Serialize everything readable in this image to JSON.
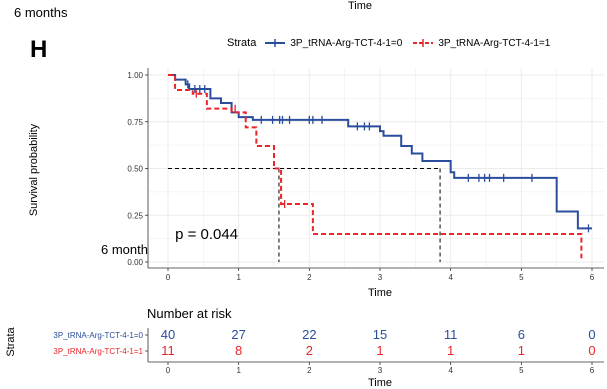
{
  "top_caption": "6 months",
  "top_axis_label": "Time",
  "panel_letter": "H",
  "legend": {
    "title": "Strata",
    "items": [
      {
        "label": "3P_tRNA-Arg-TCT-4-1=0",
        "color": "#2a4d9c"
      },
      {
        "label": "3P_tRNA-Arg-TCT-4-1=1",
        "color": "#e8262a"
      }
    ]
  },
  "chart_data": {
    "type": "line",
    "xlabel": "Time",
    "ylabel": "Survival probability",
    "xlim": [
      0,
      6
    ],
    "ylim": [
      0,
      1
    ],
    "xticks": [
      "0",
      "1",
      "2",
      "3",
      "4",
      "5",
      "6"
    ],
    "yticks": [
      "0.00",
      "0.25",
      "0.50",
      "0.75",
      "1.00"
    ],
    "annotation": "p = 0.044",
    "annotation_at": [
      0.1,
      0.15
    ],
    "inline_label": "6 month",
    "series": [
      {
        "color": "#2a4d9c",
        "dashed": false,
        "steps": [
          [
            0,
            1.0
          ],
          [
            0.1,
            0.975
          ],
          [
            0.25,
            0.95
          ],
          [
            0.3,
            0.925
          ],
          [
            0.6,
            0.875
          ],
          [
            0.75,
            0.85
          ],
          [
            0.9,
            0.8
          ],
          [
            1.0,
            0.775
          ],
          [
            1.2,
            0.76
          ],
          [
            2.55,
            0.725
          ],
          [
            3.0,
            0.7
          ],
          [
            3.05,
            0.675
          ],
          [
            3.3,
            0.62
          ],
          [
            3.45,
            0.58
          ],
          [
            3.6,
            0.54
          ],
          [
            3.8,
            0.54
          ],
          [
            4.0,
            0.48
          ],
          [
            4.05,
            0.45
          ],
          [
            5.5,
            0.27
          ],
          [
            5.8,
            0.18
          ],
          [
            6.0,
            0.18
          ]
        ],
        "censor": [
          [
            0.28,
            0.95
          ],
          [
            0.38,
            0.925
          ],
          [
            0.45,
            0.925
          ],
          [
            0.52,
            0.925
          ],
          [
            1.32,
            0.76
          ],
          [
            1.48,
            0.76
          ],
          [
            1.58,
            0.76
          ],
          [
            1.62,
            0.76
          ],
          [
            1.72,
            0.76
          ],
          [
            2.0,
            0.76
          ],
          [
            2.05,
            0.76
          ],
          [
            2.18,
            0.76
          ],
          [
            2.68,
            0.725
          ],
          [
            2.78,
            0.725
          ],
          [
            2.85,
            0.725
          ],
          [
            4.25,
            0.45
          ],
          [
            4.4,
            0.45
          ],
          [
            4.48,
            0.45
          ],
          [
            4.55,
            0.45
          ],
          [
            4.75,
            0.45
          ],
          [
            5.15,
            0.45
          ],
          [
            5.95,
            0.18
          ]
        ]
      },
      {
        "color": "#e8262a",
        "dashed": true,
        "steps": [
          [
            0,
            1.0
          ],
          [
            0.1,
            0.92
          ],
          [
            0.35,
            0.9
          ],
          [
            0.55,
            0.82
          ],
          [
            0.9,
            0.8
          ],
          [
            1.1,
            0.72
          ],
          [
            1.25,
            0.62
          ],
          [
            1.5,
            0.5
          ],
          [
            1.6,
            0.31
          ],
          [
            2.05,
            0.15
          ],
          [
            5.85,
            0.02
          ]
        ],
        "censor": [
          [
            0.4,
            0.9
          ],
          [
            0.95,
            0.82
          ],
          [
            1.65,
            0.31
          ]
        ]
      }
    ],
    "median_lines": [
      {
        "x": 1.57,
        "y": 0.5
      },
      {
        "x": 3.85,
        "y": 0.5
      }
    ]
  },
  "risk_table": {
    "title": "Number at risk",
    "ylabel": "Strata",
    "xlabel": "Time",
    "xticks": [
      "0",
      "1",
      "2",
      "3",
      "4",
      "5",
      "6"
    ],
    "rows": [
      {
        "label": "3P_tRNA-Arg-TCT-4-1=0",
        "color": "#2a4d9c",
        "values": [
          "40",
          "27",
          "22",
          "15",
          "11",
          "6",
          "0"
        ]
      },
      {
        "label": "3P_tRNA-Arg-TCT-4-1=1",
        "color": "#e8262a",
        "values": [
          "11",
          "8",
          "2",
          "1",
          "1",
          "1",
          "0"
        ]
      }
    ]
  }
}
